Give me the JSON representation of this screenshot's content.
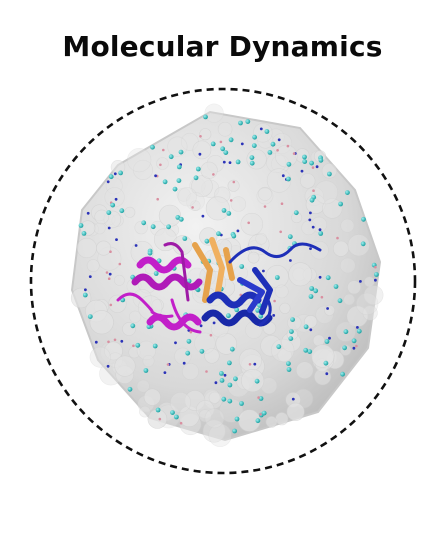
{
  "title": "Molecular Dynamics",
  "colors": {
    "background": "#ffffff",
    "boundary_stroke": "#111111",
    "water_box": "#d6d6d6",
    "ion_cyan": "#1fb5b5",
    "ion_blue": "#2b33b8",
    "ion_pink": "#d98fa0",
    "protein_magenta": "#c21fc9",
    "protein_blue": "#1e2fb8",
    "protein_orange": "#e6a24c"
  },
  "icons": [
    "dashed-circle-boundary",
    "water-box",
    "protein-ribbon",
    "ion-particles"
  ]
}
